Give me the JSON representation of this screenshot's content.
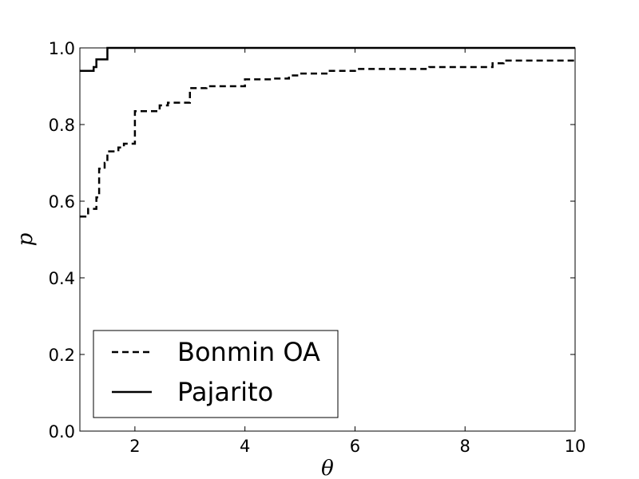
{
  "chart_data": {
    "type": "line",
    "title": "",
    "xlabel": "θ",
    "ylabel": "p",
    "xlim": [
      1,
      10
    ],
    "ylim": [
      0,
      1.0
    ],
    "xticks": [
      2,
      4,
      6,
      8,
      10
    ],
    "yticks": [
      0.0,
      0.2,
      0.4,
      0.6,
      0.8,
      1.0
    ],
    "xtick_labels": [
      "2",
      "4",
      "6",
      "8",
      "10"
    ],
    "ytick_labels": [
      "0.0",
      "0.2",
      "0.4",
      "0.6",
      "0.8",
      "1.0"
    ],
    "grid": false,
    "legend_position": "lower-left",
    "series": [
      {
        "name": "Bonmin OA",
        "style": "dashed",
        "color": "#000000",
        "x": [
          1.0,
          1.1,
          1.15,
          1.3,
          1.35,
          1.45,
          1.5,
          1.7,
          1.8,
          2.0,
          2.45,
          2.6,
          3.0,
          3.3,
          4.0,
          4.5,
          4.8,
          5.0,
          5.5,
          6.0,
          7.35,
          8.5,
          8.7,
          10.0
        ],
        "y": [
          0.56,
          0.565,
          0.58,
          0.61,
          0.685,
          0.7,
          0.73,
          0.74,
          0.75,
          0.835,
          0.85,
          0.857,
          0.895,
          0.9,
          0.918,
          0.92,
          0.928,
          0.933,
          0.94,
          0.945,
          0.95,
          0.96,
          0.967,
          0.97
        ]
      },
      {
        "name": "Pajarito",
        "style": "solid",
        "color": "#000000",
        "x": [
          1.0,
          1.25,
          1.3,
          1.5,
          10.0
        ],
        "y": [
          0.94,
          0.95,
          0.97,
          1.0,
          1.0
        ]
      }
    ]
  }
}
